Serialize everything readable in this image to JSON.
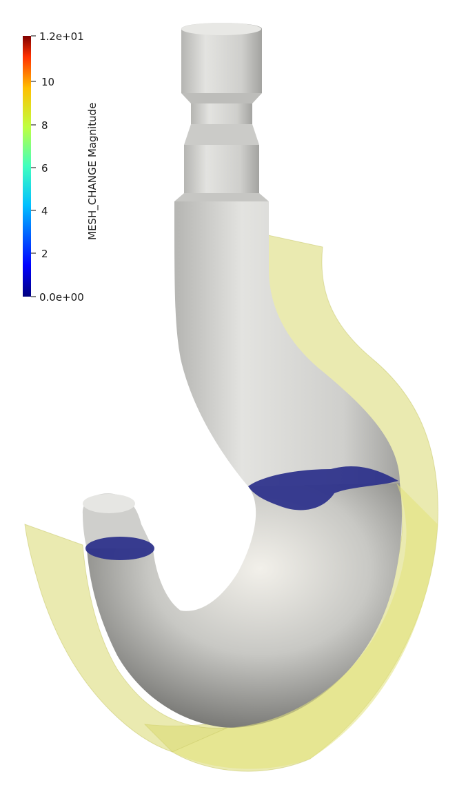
{
  "colorbar": {
    "title": "MESH_CHANGE Magnitude",
    "max_label": "1.2e+01",
    "min_label": "0.0e+00",
    "ticks": [
      "10",
      "8",
      "6",
      "4",
      "2"
    ],
    "colormap": [
      "#00007f",
      "#0000ff",
      "#00bfff",
      "#40ffbf",
      "#bfff40",
      "#ffbf00",
      "#ff3000",
      "#7f0000"
    ]
  },
  "scene": {
    "object_color": "#c9c9c6",
    "slice_plane_color": "#d8d870",
    "cross_section_color": "#2a2f8a",
    "background": "#ffffff"
  }
}
